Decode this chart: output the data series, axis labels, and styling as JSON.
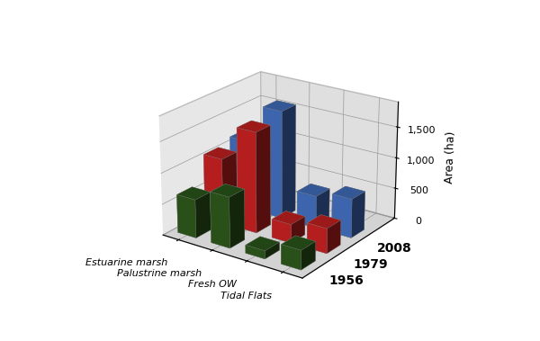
{
  "categories": [
    "Estuarine marsh",
    "Palustrine marsh",
    "Fresh OW",
    "Tidal Flats"
  ],
  "years": [
    "1956",
    "1979",
    "2008"
  ],
  "values": {
    "1956": [
      620,
      820,
      130,
      310
    ],
    "1979": [
      1050,
      1620,
      300,
      400
    ],
    "2008": [
      1130,
      1750,
      520,
      630
    ]
  },
  "colors": {
    "1956": "#2D5A1B",
    "1979": "#CC2222",
    "2008": "#4472C4"
  },
  "ylabel": "Area (ha)",
  "zticks": [
    0,
    500,
    1000,
    1500
  ],
  "ztick_labels": [
    "0",
    "500",
    "1,000",
    "1,500"
  ],
  "zlim": [
    0,
    1900
  ],
  "bar_width": 0.55,
  "bar_depth": 0.55,
  "elev": 22,
  "azim": -55,
  "wall_color_back": "#D0D0D0",
  "wall_color_side": "#C0C0C0",
  "floor_color": "#A8A8A8",
  "year_label_fontsize": 10,
  "axis_label_fontsize": 9,
  "tick_label_fontsize": 8
}
